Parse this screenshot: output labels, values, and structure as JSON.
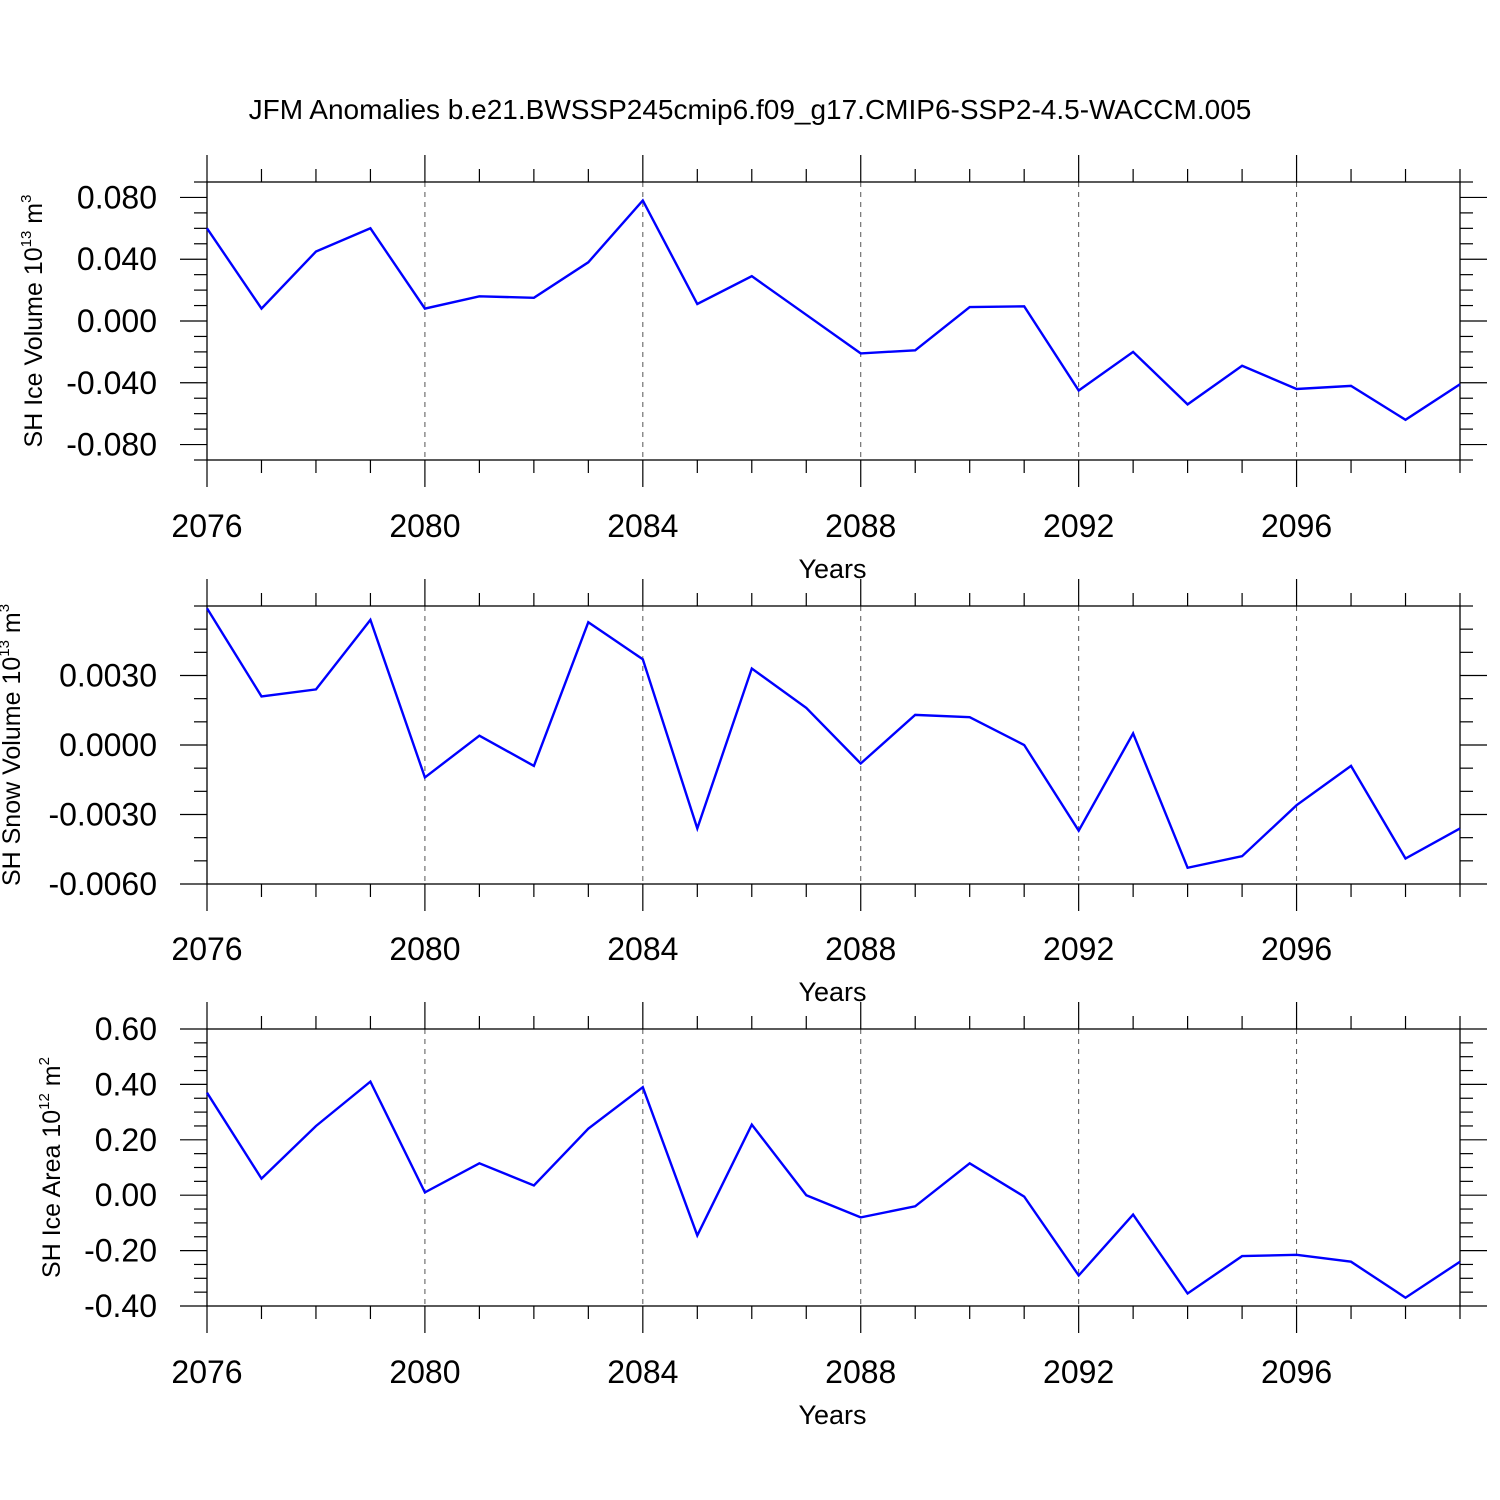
{
  "figure": {
    "title": "JFM Anomalies b.e21.BWSSP245cmip6.f09_g17.CMIP6-SSP2-4.5-WACCM.005",
    "line_color": "#0000ff"
  },
  "chart_data": [
    {
      "type": "line",
      "xlabel": "Years",
      "ylabel": {
        "text": "SH Ice Volume 10",
        "exp": "13",
        "unit": " m",
        "unit_exp": "3"
      },
      "xlim": [
        2076,
        2099
      ],
      "ylim": [
        -0.09,
        0.09
      ],
      "x_ticks": [
        "2076",
        "2080",
        "2084",
        "2088",
        "2092",
        "2096"
      ],
      "y_ticks": [
        {
          "value": 0.08,
          "label": "0.080"
        },
        {
          "value": 0.04,
          "label": "0.040"
        },
        {
          "value": 0.0,
          "label": "0.000"
        },
        {
          "value": -0.04,
          "label": "-0.040"
        },
        {
          "value": -0.08,
          "label": "-0.080"
        }
      ],
      "grid": "dashed vertical at labeled years",
      "x": [
        2076,
        2077,
        2078,
        2079,
        2080,
        2081,
        2082,
        2083,
        2084,
        2085,
        2086,
        2087,
        2088,
        2089,
        2090,
        2091,
        2092,
        2093,
        2094,
        2095,
        2096,
        2097,
        2098,
        2099
      ],
      "values": [
        0.06,
        0.008,
        0.045,
        0.06,
        0.008,
        0.016,
        0.015,
        0.038,
        0.078,
        0.011,
        0.029,
        0.004,
        -0.021,
        -0.019,
        0.009,
        0.0095,
        -0.045,
        -0.02,
        -0.054,
        -0.029,
        -0.044,
        -0.042,
        -0.064,
        -0.041
      ]
    },
    {
      "type": "line",
      "xlabel": "Years",
      "ylabel": {
        "text": "SH Snow Volume 10",
        "exp": "13",
        "unit": " m",
        "unit_exp": "3"
      },
      "xlim": [
        2076,
        2099
      ],
      "ylim": [
        -0.006,
        0.006
      ],
      "x_ticks": [
        "2076",
        "2080",
        "2084",
        "2088",
        "2092",
        "2096"
      ],
      "y_ticks": [
        {
          "value": 0.003,
          "label": "0.0030"
        },
        {
          "value": 0.0,
          "label": "0.0000"
        },
        {
          "value": -0.003,
          "label": "-0.0030"
        },
        {
          "value": -0.006,
          "label": "-0.0060"
        }
      ],
      "grid": "dashed vertical at labeled years",
      "x": [
        2076,
        2077,
        2078,
        2079,
        2080,
        2081,
        2082,
        2083,
        2084,
        2085,
        2086,
        2087,
        2088,
        2089,
        2090,
        2091,
        2092,
        2093,
        2094,
        2095,
        2096,
        2097,
        2098,
        2099
      ],
      "values": [
        0.0059,
        0.0021,
        0.0024,
        0.0054,
        -0.0014,
        0.0004,
        -0.0009,
        0.0053,
        0.0037,
        -0.0036,
        0.0033,
        0.0016,
        -0.0008,
        0.0013,
        0.0012,
        0.0,
        -0.0037,
        0.0005,
        -0.0053,
        -0.0048,
        -0.0026,
        -0.0009,
        -0.0049,
        -0.0036
      ]
    },
    {
      "type": "line",
      "xlabel": "Years",
      "ylabel": {
        "text": "SH Ice Area 10",
        "exp": "12",
        "unit": " m",
        "unit_exp": "2"
      },
      "xlim": [
        2076,
        2099
      ],
      "ylim": [
        -0.4,
        0.6
      ],
      "x_ticks": [
        "2076",
        "2080",
        "2084",
        "2088",
        "2092",
        "2096"
      ],
      "y_ticks": [
        {
          "value": 0.6,
          "label": "0.60"
        },
        {
          "value": 0.4,
          "label": "0.40"
        },
        {
          "value": 0.2,
          "label": "0.20"
        },
        {
          "value": 0.0,
          "label": "0.00"
        },
        {
          "value": -0.2,
          "label": "-0.20"
        },
        {
          "value": -0.4,
          "label": "-0.40"
        }
      ],
      "grid": "dashed vertical at labeled years",
      "x": [
        2076,
        2077,
        2078,
        2079,
        2080,
        2081,
        2082,
        2083,
        2084,
        2085,
        2086,
        2087,
        2088,
        2089,
        2090,
        2091,
        2092,
        2093,
        2094,
        2095,
        2096,
        2097,
        2098,
        2099
      ],
      "values": [
        0.37,
        0.06,
        0.25,
        0.41,
        0.01,
        0.115,
        0.035,
        0.24,
        0.39,
        -0.145,
        0.255,
        0.0,
        -0.08,
        -0.04,
        0.115,
        -0.005,
        -0.29,
        -0.07,
        -0.355,
        -0.22,
        -0.215,
        -0.24,
        -0.37,
        -0.24
      ]
    }
  ]
}
